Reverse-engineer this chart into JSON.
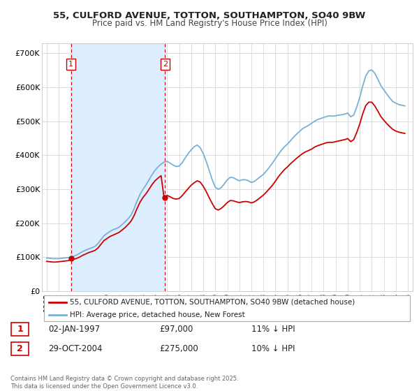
{
  "title": "55, CULFORD AVENUE, TOTTON, SOUTHAMPTON, SO40 9BW",
  "subtitle": "Price paid vs. HM Land Registry's House Price Index (HPI)",
  "ylabel_ticks": [
    "£0",
    "£100K",
    "£200K",
    "£300K",
    "£400K",
    "£500K",
    "£600K",
    "£700K"
  ],
  "ytick_values": [
    0,
    100000,
    200000,
    300000,
    400000,
    500000,
    600000,
    700000
  ],
  "ylim": [
    0,
    730000
  ],
  "xlim_start": 1994.6,
  "xlim_end": 2025.4,
  "legend_line1": "55, CULFORD AVENUE, TOTTON, SOUTHAMPTON, SO40 9BW (detached house)",
  "legend_line2": "HPI: Average price, detached house, New Forest",
  "purchase1_date": "02-JAN-1997",
  "purchase1_price": 97000,
  "purchase1_hpi": "11% ↓ HPI",
  "purchase2_date": "29-OCT-2004",
  "purchase2_price": 275000,
  "purchase2_hpi": "10% ↓ HPI",
  "footer": "Contains HM Land Registry data © Crown copyright and database right 2025.\nThis data is licensed under the Open Government Licence v3.0.",
  "line_color_paid": "#cc0000",
  "line_color_hpi": "#7ab0d4",
  "vline_color": "#cc0000",
  "shade_color": "#ddeeff",
  "purchase_marker_color": "#cc0000",
  "background_color": "#ffffff",
  "grid_color": "#dddddd",
  "hpi_data": {
    "years": [
      1995.0,
      1995.25,
      1995.5,
      1995.75,
      1996.0,
      1996.25,
      1996.5,
      1996.75,
      1997.0,
      1997.25,
      1997.5,
      1997.75,
      1998.0,
      1998.25,
      1998.5,
      1998.75,
      1999.0,
      1999.25,
      1999.5,
      1999.75,
      2000.0,
      2000.25,
      2000.5,
      2000.75,
      2001.0,
      2001.25,
      2001.5,
      2001.75,
      2002.0,
      2002.25,
      2002.5,
      2002.75,
      2003.0,
      2003.25,
      2003.5,
      2003.75,
      2004.0,
      2004.25,
      2004.5,
      2004.75,
      2005.0,
      2005.25,
      2005.5,
      2005.75,
      2006.0,
      2006.25,
      2006.5,
      2006.75,
      2007.0,
      2007.25,
      2007.5,
      2007.75,
      2008.0,
      2008.25,
      2008.5,
      2008.75,
      2009.0,
      2009.25,
      2009.5,
      2009.75,
      2010.0,
      2010.25,
      2010.5,
      2010.75,
      2011.0,
      2011.25,
      2011.5,
      2011.75,
      2012.0,
      2012.25,
      2012.5,
      2012.75,
      2013.0,
      2013.25,
      2013.5,
      2013.75,
      2014.0,
      2014.25,
      2014.5,
      2014.75,
      2015.0,
      2015.25,
      2015.5,
      2015.75,
      2016.0,
      2016.25,
      2016.5,
      2016.75,
      2017.0,
      2017.25,
      2017.5,
      2017.75,
      2018.0,
      2018.25,
      2018.5,
      2018.75,
      2019.0,
      2019.25,
      2019.5,
      2019.75,
      2020.0,
      2020.25,
      2020.5,
      2020.75,
      2021.0,
      2021.25,
      2021.5,
      2021.75,
      2022.0,
      2022.25,
      2022.5,
      2022.75,
      2023.0,
      2023.25,
      2023.5,
      2023.75,
      2024.0,
      2024.25,
      2024.5,
      2024.75
    ],
    "values": [
      98000,
      97000,
      96000,
      96000,
      96000,
      97000,
      98000,
      99000,
      100000,
      103000,
      107000,
      112000,
      117000,
      121000,
      125000,
      128000,
      132000,
      140000,
      152000,
      163000,
      170000,
      176000,
      181000,
      184000,
      188000,
      196000,
      204000,
      213000,
      224000,
      242000,
      265000,
      285000,
      300000,
      313000,
      328000,
      343000,
      356000,
      366000,
      374000,
      380000,
      382000,
      377000,
      371000,
      367000,
      368000,
      378000,
      392000,
      405000,
      416000,
      425000,
      430000,
      422000,
      405000,
      382000,
      355000,
      328000,
      306000,
      300000,
      305000,
      316000,
      328000,
      335000,
      334000,
      329000,
      325000,
      328000,
      328000,
      325000,
      320000,
      323000,
      330000,
      337000,
      344000,
      354000,
      365000,
      377000,
      390000,
      403000,
      415000,
      425000,
      433000,
      443000,
      453000,
      462000,
      470000,
      478000,
      483000,
      488000,
      494000,
      500000,
      505000,
      508000,
      511000,
      514000,
      516000,
      515000,
      516000,
      518000,
      519000,
      521000,
      524000,
      513000,
      518000,
      542000,
      570000,
      604000,
      633000,
      648000,
      651000,
      641000,
      624000,
      605000,
      592000,
      580000,
      568000,
      558000,
      553000,
      549000,
      547000,
      545000
    ]
  },
  "paid_data": {
    "years": [
      1995.0,
      1995.25,
      1995.5,
      1995.75,
      1996.0,
      1996.25,
      1996.5,
      1996.75,
      1997.0,
      1997.25,
      1997.5,
      1997.75,
      1998.0,
      1998.25,
      1998.5,
      1998.75,
      1999.0,
      1999.25,
      1999.5,
      1999.75,
      2000.0,
      2000.25,
      2000.5,
      2000.75,
      2001.0,
      2001.25,
      2001.5,
      2001.75,
      2002.0,
      2002.25,
      2002.5,
      2002.75,
      2003.0,
      2003.25,
      2003.5,
      2003.75,
      2004.0,
      2004.25,
      2004.5,
      2004.75,
      2005.0,
      2005.25,
      2005.5,
      2005.75,
      2006.0,
      2006.25,
      2006.5,
      2006.75,
      2007.0,
      2007.25,
      2007.5,
      2007.75,
      2008.0,
      2008.25,
      2008.5,
      2008.75,
      2009.0,
      2009.25,
      2009.5,
      2009.75,
      2010.0,
      2010.25,
      2010.5,
      2010.75,
      2011.0,
      2011.25,
      2011.5,
      2011.75,
      2012.0,
      2012.25,
      2012.5,
      2012.75,
      2013.0,
      2013.25,
      2013.5,
      2013.75,
      2014.0,
      2014.25,
      2014.5,
      2014.75,
      2015.0,
      2015.25,
      2015.5,
      2015.75,
      2016.0,
      2016.25,
      2016.5,
      2016.75,
      2017.0,
      2017.25,
      2017.5,
      2017.75,
      2018.0,
      2018.25,
      2018.5,
      2018.75,
      2019.0,
      2019.25,
      2019.5,
      2019.75,
      2020.0,
      2020.25,
      2020.5,
      2020.75,
      2021.0,
      2021.25,
      2021.5,
      2021.75,
      2022.0,
      2022.25,
      2022.5,
      2022.75,
      2023.0,
      2023.25,
      2023.5,
      2023.75,
      2024.0,
      2024.25,
      2024.5,
      2024.75
    ],
    "values": [
      88000,
      87000,
      86000,
      86000,
      87000,
      88000,
      89000,
      90000,
      91000,
      94000,
      97000,
      101000,
      106000,
      110000,
      114000,
      117000,
      120000,
      127000,
      138000,
      149000,
      155000,
      161000,
      165000,
      169000,
      173000,
      180000,
      187000,
      196000,
      206000,
      222000,
      243000,
      262000,
      276000,
      287000,
      300000,
      314000,
      325000,
      333000,
      340000,
      274000,
      282000,
      278000,
      273000,
      271000,
      273000,
      281000,
      292000,
      302000,
      312000,
      319000,
      325000,
      321000,
      309000,
      293000,
      275000,
      258000,
      243000,
      239000,
      244000,
      252000,
      261000,
      267000,
      266000,
      263000,
      261000,
      263000,
      264000,
      263000,
      260000,
      263000,
      269000,
      276000,
      283000,
      292000,
      302000,
      312000,
      324000,
      337000,
      348000,
      358000,
      366000,
      375000,
      383000,
      391000,
      398000,
      405000,
      410000,
      414000,
      418000,
      424000,
      428000,
      431000,
      434000,
      437000,
      438000,
      438000,
      440000,
      442000,
      444000,
      446000,
      449000,
      440000,
      446000,
      467000,
      492000,
      522000,
      546000,
      556000,
      556000,
      545000,
      530000,
      514000,
      503000,
      493000,
      484000,
      476000,
      471000,
      468000,
      466000,
      464000
    ]
  },
  "purchase1_x": 1997.02,
  "purchase2_x": 2004.82
}
